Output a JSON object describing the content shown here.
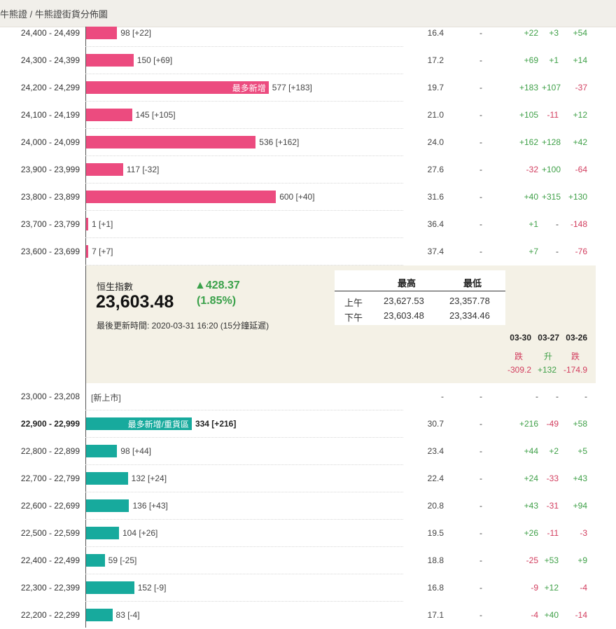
{
  "breadcrumb": "牛熊證 / 牛熊證街貨分佈圖",
  "bull_rows": [
    {
      "range": "24,400 - 24,499",
      "count": "98 [+22]",
      "tag": "",
      "bar": 98,
      "pct": "16.4",
      "dash": "-",
      "c1": "+22",
      "c2": "+3",
      "c3": "+54",
      "s1": "pos",
      "s2": "pos",
      "s3": "pos"
    },
    {
      "range": "24,300 - 24,399",
      "count": "150 [+69]",
      "tag": "",
      "bar": 150,
      "pct": "17.2",
      "dash": "-",
      "c1": "+69",
      "c2": "+1",
      "c3": "+14",
      "s1": "pos",
      "s2": "pos",
      "s3": "pos"
    },
    {
      "range": "24,200 - 24,299",
      "count": "577 [+183]",
      "tag": "最多新增",
      "bar": 577,
      "pct": "19.7",
      "dash": "-",
      "c1": "+183",
      "c2": "+107",
      "c3": "-37",
      "s1": "pos",
      "s2": "pos",
      "s3": "neg"
    },
    {
      "range": "24,100 - 24,199",
      "count": "145 [+105]",
      "tag": "",
      "bar": 145,
      "pct": "21.0",
      "dash": "-",
      "c1": "+105",
      "c2": "-11",
      "c3": "+12",
      "s1": "pos",
      "s2": "neg",
      "s3": "pos"
    },
    {
      "range": "24,000 - 24,099",
      "count": "536 [+162]",
      "tag": "",
      "bar": 536,
      "pct": "24.0",
      "dash": "-",
      "c1": "+162",
      "c2": "+128",
      "c3": "+42",
      "s1": "pos",
      "s2": "pos",
      "s3": "pos"
    },
    {
      "range": "23,900 - 23,999",
      "count": "117 [-32]",
      "tag": "",
      "bar": 117,
      "pct": "27.6",
      "dash": "-",
      "c1": "-32",
      "c2": "+100",
      "c3": "-64",
      "s1": "neg",
      "s2": "pos",
      "s3": "neg"
    },
    {
      "range": "23,800 - 23,899",
      "count": "600 [+40]",
      "tag": "",
      "bar": 600,
      "pct": "31.6",
      "dash": "-",
      "c1": "+40",
      "c2": "+315",
      "c3": "+130",
      "s1": "pos",
      "s2": "pos",
      "s3": "pos"
    },
    {
      "range": "23,700 - 23,799",
      "count": "1 [+1]",
      "tag": "",
      "bar": 1,
      "pct": "36.4",
      "dash": "-",
      "c1": "+1",
      "c2": "-",
      "c3": "-148",
      "s1": "pos",
      "s2": "neu",
      "s3": "neg"
    },
    {
      "range": "23,600 - 23,699",
      "count": "7 [+7]",
      "tag": "",
      "bar": 7,
      "pct": "37.4",
      "dash": "-",
      "c1": "+7",
      "c2": "-",
      "c3": "-76",
      "s1": "pos",
      "s2": "neu",
      "s3": "neg"
    }
  ],
  "index": {
    "name": "恒生指數",
    "value": "23,603.48",
    "change": "▲428.37",
    "change_pct": "(1.85%)",
    "updated": "最後更新時間: 2020-03-31 16:20 (15分鐘延遲)",
    "high_label": "最高",
    "low_label": "最低",
    "am_label": "上午",
    "pm_label": "下午",
    "am_high": "23,627.53",
    "am_low": "23,357.78",
    "pm_high": "23,603.48",
    "pm_low": "23,334.46",
    "dates": [
      "03-30",
      "03-27",
      "03-26"
    ],
    "directions": [
      "跌",
      "升",
      "跌"
    ],
    "day_changes": [
      "-309.2",
      "+132",
      "-174.9"
    ],
    "colors": {
      "up": "#3aa14a",
      "down": "#d23d5e"
    }
  },
  "bear_rows": [
    {
      "range": "23,000 - 23,208",
      "count": "[新上市]",
      "tag": "",
      "bar": 0,
      "pct": "-",
      "dash": "-",
      "c1": "-",
      "c2": "-",
      "c3": "-",
      "s1": "neu",
      "s2": "neu",
      "s3": "neu",
      "bold": false
    },
    {
      "range": "22,900 - 22,999",
      "count": "334 [+216]",
      "tag": "最多新增/重貨區",
      "bar": 334,
      "pct": "30.7",
      "dash": "-",
      "c1": "+216",
      "c2": "-49",
      "c3": "+58",
      "s1": "pos",
      "s2": "neg",
      "s3": "pos",
      "bold": true
    },
    {
      "range": "22,800 - 22,899",
      "count": "98 [+44]",
      "tag": "",
      "bar": 98,
      "pct": "23.4",
      "dash": "-",
      "c1": "+44",
      "c2": "+2",
      "c3": "+5",
      "s1": "pos",
      "s2": "pos",
      "s3": "pos",
      "bold": false
    },
    {
      "range": "22,700 - 22,799",
      "count": "132 [+24]",
      "tag": "",
      "bar": 132,
      "pct": "22.4",
      "dash": "-",
      "c1": "+24",
      "c2": "-33",
      "c3": "+43",
      "s1": "pos",
      "s2": "neg",
      "s3": "pos",
      "bold": false
    },
    {
      "range": "22,600 - 22,699",
      "count": "136 [+43]",
      "tag": "",
      "bar": 136,
      "pct": "20.8",
      "dash": "-",
      "c1": "+43",
      "c2": "-31",
      "c3": "+94",
      "s1": "pos",
      "s2": "neg",
      "s3": "pos",
      "bold": false
    },
    {
      "range": "22,500 - 22,599",
      "count": "104 [+26]",
      "tag": "",
      "bar": 104,
      "pct": "19.5",
      "dash": "-",
      "c1": "+26",
      "c2": "-11",
      "c3": "-3",
      "s1": "pos",
      "s2": "neg",
      "s3": "neg",
      "bold": false
    },
    {
      "range": "22,400 - 22,499",
      "count": "59 [-25]",
      "tag": "",
      "bar": 59,
      "pct": "18.8",
      "dash": "-",
      "c1": "-25",
      "c2": "+53",
      "c3": "+9",
      "s1": "neg",
      "s2": "pos",
      "s3": "pos",
      "bold": false
    },
    {
      "range": "22,300 - 22,399",
      "count": "152 [-9]",
      "tag": "",
      "bar": 152,
      "pct": "16.8",
      "dash": "-",
      "c1": "-9",
      "c2": "+12",
      "c3": "-4",
      "s1": "neg",
      "s2": "pos",
      "s3": "neg",
      "bold": false
    },
    {
      "range": "22,200 - 22,299",
      "count": "83 [-4]",
      "tag": "",
      "bar": 83,
      "pct": "17.1",
      "dash": "-",
      "c1": "-4",
      "c2": "+40",
      "c3": "-14",
      "s1": "neg",
      "s2": "pos",
      "s3": "neg",
      "bold": false
    }
  ]
}
